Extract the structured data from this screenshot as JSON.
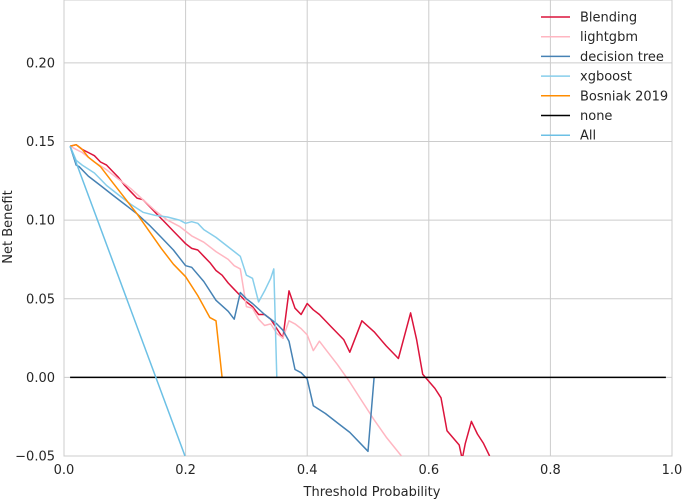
{
  "chart_data": {
    "type": "line",
    "xlabel": "Threshold Probability",
    "ylabel": "Net Benefit",
    "xlim": [
      0,
      1
    ],
    "ylim": [
      -0.05,
      0.24
    ],
    "xticks": [
      "0.0",
      "0.2",
      "0.4",
      "0.6",
      "0.8",
      "1.0"
    ],
    "yticks": [
      "−0.05",
      "0.00",
      "0.05",
      "0.10",
      "0.15",
      "0.20"
    ],
    "grid": true,
    "legend_position": "top-right",
    "series": [
      {
        "name": "Blending",
        "color": "#dc143c",
        "points": [
          [
            0.01,
            0.147
          ],
          [
            0.02,
            0.148
          ],
          [
            0.03,
            0.145
          ],
          [
            0.04,
            0.143
          ],
          [
            0.05,
            0.141
          ],
          [
            0.06,
            0.137
          ],
          [
            0.07,
            0.135
          ],
          [
            0.08,
            0.131
          ],
          [
            0.09,
            0.127
          ],
          [
            0.1,
            0.122
          ],
          [
            0.11,
            0.118
          ],
          [
            0.12,
            0.114
          ],
          [
            0.13,
            0.113
          ],
          [
            0.14,
            0.109
          ],
          [
            0.15,
            0.105
          ],
          [
            0.16,
            0.101
          ],
          [
            0.17,
            0.097
          ],
          [
            0.18,
            0.093
          ],
          [
            0.19,
            0.089
          ],
          [
            0.2,
            0.085
          ],
          [
            0.21,
            0.082
          ],
          [
            0.22,
            0.081
          ],
          [
            0.23,
            0.077
          ],
          [
            0.24,
            0.073
          ],
          [
            0.25,
            0.068
          ],
          [
            0.26,
            0.065
          ],
          [
            0.27,
            0.06
          ],
          [
            0.28,
            0.056
          ],
          [
            0.29,
            0.052
          ],
          [
            0.3,
            0.048
          ],
          [
            0.31,
            0.045
          ],
          [
            0.32,
            0.04
          ],
          [
            0.33,
            0.04
          ],
          [
            0.34,
            0.037
          ],
          [
            0.35,
            0.031
          ],
          [
            0.36,
            0.025
          ],
          [
            0.37,
            0.055
          ],
          [
            0.38,
            0.044
          ],
          [
            0.39,
            0.04
          ],
          [
            0.4,
            0.047
          ],
          [
            0.41,
            0.043
          ],
          [
            0.42,
            0.04
          ],
          [
            0.44,
            0.032
          ],
          [
            0.46,
            0.024
          ],
          [
            0.47,
            0.016
          ],
          [
            0.49,
            0.036
          ],
          [
            0.51,
            0.029
          ],
          [
            0.53,
            0.02
          ],
          [
            0.55,
            0.012
          ],
          [
            0.57,
            0.041
          ],
          [
            0.58,
            0.024
          ],
          [
            0.59,
            0.002
          ],
          [
            0.61,
            -0.007
          ],
          [
            0.62,
            -0.013
          ],
          [
            0.63,
            -0.034
          ],
          [
            0.65,
            -0.043
          ],
          [
            0.655,
            -0.052
          ],
          [
            0.66,
            -0.042
          ],
          [
            0.67,
            -0.028
          ],
          [
            0.68,
            -0.036
          ],
          [
            0.69,
            -0.042
          ],
          [
            0.7,
            -0.05
          ]
        ]
      },
      {
        "name": "lightgbm",
        "color": "#ffb6c1",
        "points": [
          [
            0.01,
            0.147
          ],
          [
            0.02,
            0.145
          ],
          [
            0.03,
            0.143
          ],
          [
            0.04,
            0.14
          ],
          [
            0.05,
            0.137
          ],
          [
            0.07,
            0.132
          ],
          [
            0.09,
            0.126
          ],
          [
            0.11,
            0.12
          ],
          [
            0.13,
            0.113
          ],
          [
            0.15,
            0.106
          ],
          [
            0.17,
            0.1
          ],
          [
            0.19,
            0.096
          ],
          [
            0.21,
            0.09
          ],
          [
            0.23,
            0.086
          ],
          [
            0.25,
            0.08
          ],
          [
            0.27,
            0.075
          ],
          [
            0.28,
            0.071
          ],
          [
            0.29,
            0.069
          ],
          [
            0.3,
            0.045
          ],
          [
            0.31,
            0.044
          ],
          [
            0.32,
            0.037
          ],
          [
            0.33,
            0.033
          ],
          [
            0.34,
            0.034
          ],
          [
            0.35,
            0.028
          ],
          [
            0.36,
            0.025
          ],
          [
            0.37,
            0.036
          ],
          [
            0.38,
            0.034
          ],
          [
            0.39,
            0.031
          ],
          [
            0.4,
            0.027
          ],
          [
            0.41,
            0.017
          ],
          [
            0.42,
            0.023
          ],
          [
            0.43,
            0.018
          ],
          [
            0.45,
            0.008
          ],
          [
            0.47,
            -0.003
          ],
          [
            0.49,
            -0.015
          ],
          [
            0.51,
            -0.027
          ],
          [
            0.53,
            -0.038
          ],
          [
            0.555,
            -0.05
          ]
        ]
      },
      {
        "name": "decision tree",
        "color": "#4682b4",
        "points": [
          [
            0.01,
            0.147
          ],
          [
            0.02,
            0.135
          ],
          [
            0.025,
            0.134
          ],
          [
            0.04,
            0.128
          ],
          [
            0.06,
            0.122
          ],
          [
            0.08,
            0.116
          ],
          [
            0.1,
            0.11
          ],
          [
            0.12,
            0.104
          ],
          [
            0.14,
            0.097
          ],
          [
            0.16,
            0.089
          ],
          [
            0.18,
            0.081
          ],
          [
            0.2,
            0.071
          ],
          [
            0.21,
            0.07
          ],
          [
            0.23,
            0.061
          ],
          [
            0.25,
            0.049
          ],
          [
            0.27,
            0.042
          ],
          [
            0.28,
            0.037
          ],
          [
            0.29,
            0.054
          ],
          [
            0.3,
            0.05
          ],
          [
            0.31,
            0.047
          ],
          [
            0.33,
            0.04
          ],
          [
            0.35,
            0.034
          ],
          [
            0.36,
            0.03
          ],
          [
            0.37,
            0.023
          ],
          [
            0.38,
            0.005
          ],
          [
            0.39,
            0.003
          ],
          [
            0.4,
            -0.001
          ],
          [
            0.41,
            -0.018
          ],
          [
            0.43,
            -0.023
          ],
          [
            0.45,
            -0.029
          ],
          [
            0.47,
            -0.035
          ],
          [
            0.5,
            -0.047
          ],
          [
            0.51,
            0.0
          ]
        ]
      },
      {
        "name": "xgboost",
        "color": "#87ceeb",
        "points": [
          [
            0.01,
            0.147
          ],
          [
            0.02,
            0.138
          ],
          [
            0.03,
            0.135
          ],
          [
            0.05,
            0.13
          ],
          [
            0.07,
            0.122
          ],
          [
            0.09,
            0.116
          ],
          [
            0.11,
            0.11
          ],
          [
            0.13,
            0.105
          ],
          [
            0.15,
            0.103
          ],
          [
            0.17,
            0.102
          ],
          [
            0.19,
            0.1
          ],
          [
            0.2,
            0.098
          ],
          [
            0.21,
            0.099
          ],
          [
            0.22,
            0.098
          ],
          [
            0.23,
            0.094
          ],
          [
            0.25,
            0.089
          ],
          [
            0.27,
            0.083
          ],
          [
            0.29,
            0.077
          ],
          [
            0.3,
            0.065
          ],
          [
            0.31,
            0.063
          ],
          [
            0.32,
            0.048
          ],
          [
            0.33,
            0.055
          ],
          [
            0.34,
            0.063
          ],
          [
            0.345,
            0.069
          ],
          [
            0.35,
            0.0
          ]
        ]
      },
      {
        "name": "Bosniak 2019",
        "color": "#ff8c00",
        "points": [
          [
            0.01,
            0.147
          ],
          [
            0.02,
            0.148
          ],
          [
            0.03,
            0.145
          ],
          [
            0.04,
            0.14
          ],
          [
            0.06,
            0.134
          ],
          [
            0.08,
            0.124
          ],
          [
            0.1,
            0.114
          ],
          [
            0.12,
            0.104
          ],
          [
            0.14,
            0.093
          ],
          [
            0.16,
            0.082
          ],
          [
            0.18,
            0.072
          ],
          [
            0.2,
            0.064
          ],
          [
            0.22,
            0.052
          ],
          [
            0.24,
            0.038
          ],
          [
            0.25,
            0.036
          ],
          [
            0.26,
            0.0
          ]
        ]
      },
      {
        "name": "none",
        "color": "#000000",
        "points": [
          [
            0.01,
            0.0
          ],
          [
            0.99,
            0.0
          ]
        ]
      },
      {
        "name": "All",
        "color": "#6cc0e5",
        "points": [
          [
            0.01,
            0.147
          ],
          [
            0.199,
            -0.05
          ]
        ]
      }
    ]
  }
}
